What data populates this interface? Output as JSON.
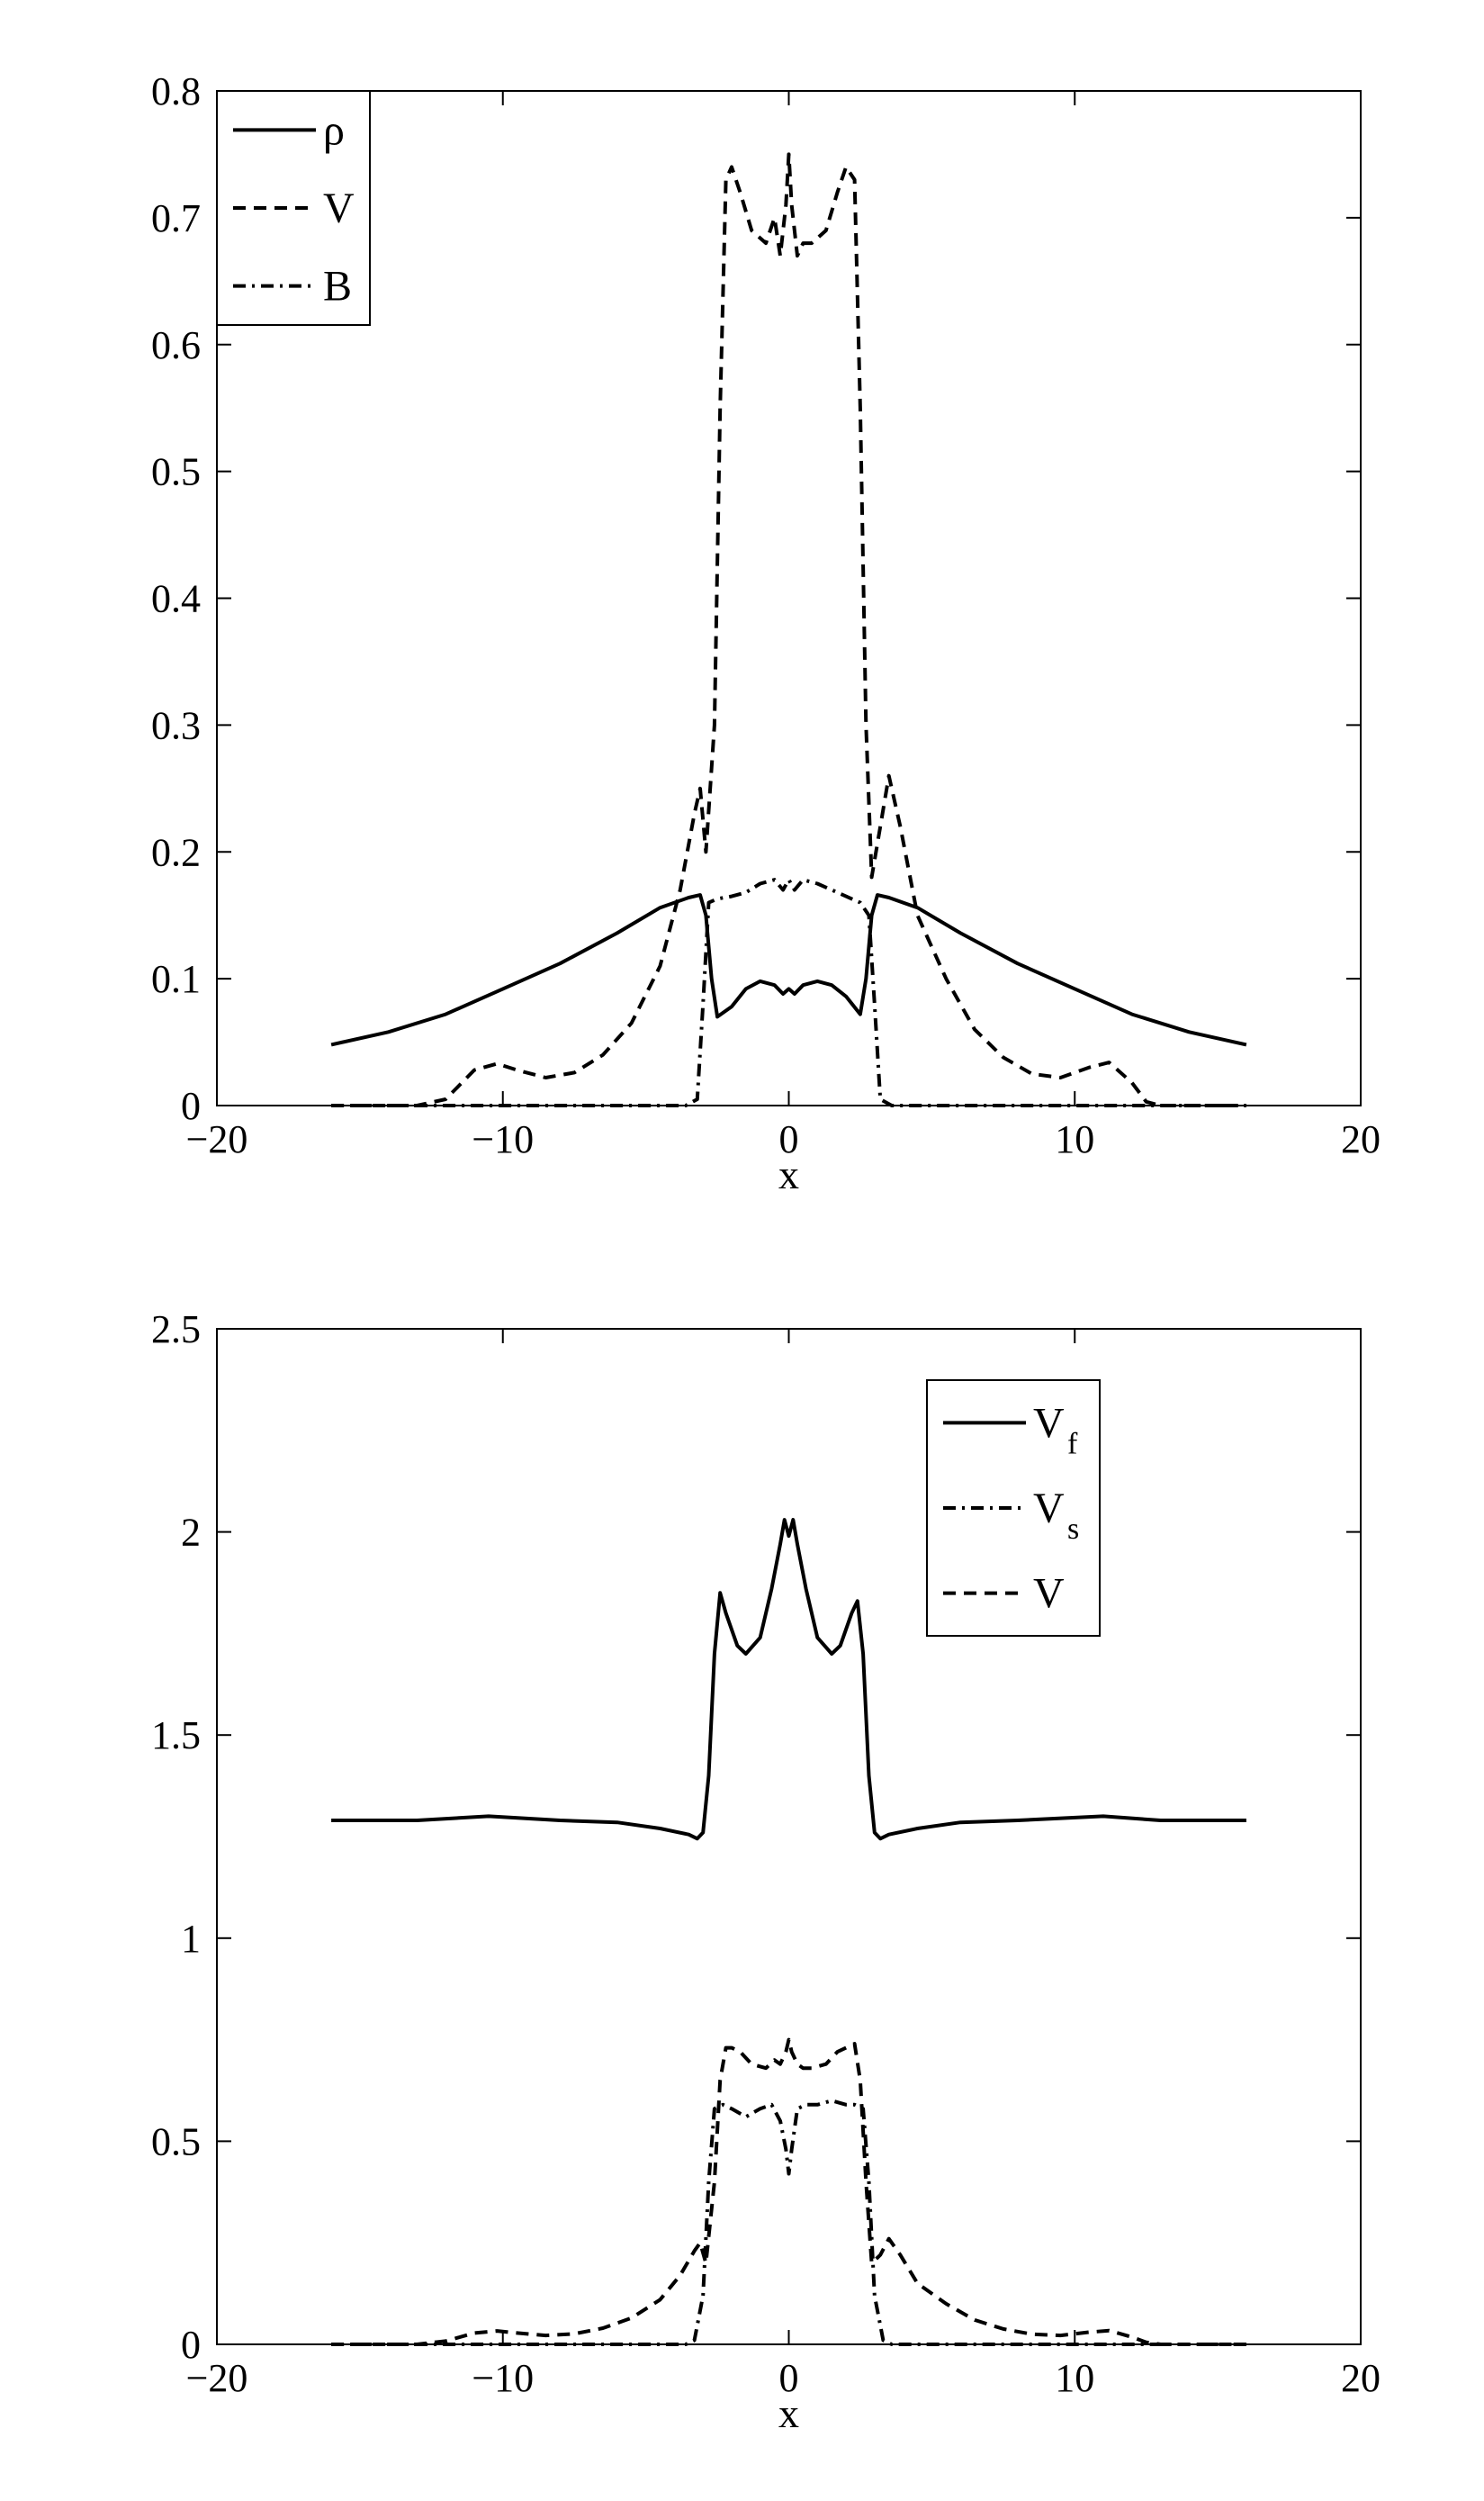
{
  "chart_data": [
    {
      "type": "line",
      "title": "",
      "xlabel": "x",
      "ylabel": "",
      "xlim": [
        -20,
        20
      ],
      "ylim": [
        0,
        0.8
      ],
      "xticks": [
        -20,
        -10,
        0,
        10,
        20
      ],
      "xtick_labels": [
        "−20",
        "−10",
        "0",
        "10",
        "20"
      ],
      "yticks": [
        0,
        0.1,
        0.2,
        0.3,
        0.4,
        0.5,
        0.6,
        0.7,
        0.8
      ],
      "ytick_labels": [
        "0",
        "0.1",
        "0.2",
        "0.3",
        "0.4",
        "0.5",
        "0.6",
        "0.7",
        "0.8"
      ],
      "grid": false,
      "legend_position": "top-left",
      "series": [
        {
          "name": "ρ",
          "style": "solid",
          "points": [
            [
              -16,
              0.048
            ],
            [
              -14,
              0.058
            ],
            [
              -12,
              0.072
            ],
            [
              -10,
              0.092
            ],
            [
              -8,
              0.112
            ],
            [
              -6,
              0.136
            ],
            [
              -4.5,
              0.156
            ],
            [
              -3.5,
              0.164
            ],
            [
              -3.1,
              0.166
            ],
            [
              -2.9,
              0.15
            ],
            [
              -2.7,
              0.1
            ],
            [
              -2.5,
              0.07
            ],
            [
              -2,
              0.078
            ],
            [
              -1.5,
              0.092
            ],
            [
              -1,
              0.098
            ],
            [
              -0.5,
              0.095
            ],
            [
              -0.2,
              0.088
            ],
            [
              0,
              0.092
            ],
            [
              0.2,
              0.088
            ],
            [
              0.5,
              0.095
            ],
            [
              1,
              0.098
            ],
            [
              1.5,
              0.095
            ],
            [
              2,
              0.086
            ],
            [
              2.5,
              0.072
            ],
            [
              2.7,
              0.1
            ],
            [
              2.9,
              0.15
            ],
            [
              3.1,
              0.166
            ],
            [
              3.5,
              0.164
            ],
            [
              4.5,
              0.156
            ],
            [
              6,
              0.136
            ],
            [
              8,
              0.112
            ],
            [
              10,
              0.092
            ],
            [
              12,
              0.072
            ],
            [
              14,
              0.058
            ],
            [
              16,
              0.048
            ]
          ]
        },
        {
          "name": "V",
          "style": "dashed",
          "points": [
            [
              -16,
              0
            ],
            [
              -13,
              0
            ],
            [
              -12,
              0.005
            ],
            [
              -11,
              0.028
            ],
            [
              -10.2,
              0.033
            ],
            [
              -9.5,
              0.028
            ],
            [
              -8.5,
              0.022
            ],
            [
              -7.5,
              0.026
            ],
            [
              -6.5,
              0.04
            ],
            [
              -5.5,
              0.065
            ],
            [
              -4.5,
              0.11
            ],
            [
              -3.8,
              0.17
            ],
            [
              -3.3,
              0.23
            ],
            [
              -3.1,
              0.25
            ],
            [
              -2.9,
              0.2
            ],
            [
              -2.6,
              0.3
            ],
            [
              -2.4,
              0.55
            ],
            [
              -2.2,
              0.73
            ],
            [
              -2,
              0.74
            ],
            [
              -1.7,
              0.72
            ],
            [
              -1.3,
              0.69
            ],
            [
              -0.8,
              0.68
            ],
            [
              -0.5,
              0.7
            ],
            [
              -0.3,
              0.67
            ],
            [
              -0.1,
              0.71
            ],
            [
              0,
              0.75
            ],
            [
              0.1,
              0.71
            ],
            [
              0.3,
              0.67
            ],
            [
              0.5,
              0.68
            ],
            [
              0.8,
              0.68
            ],
            [
              1.3,
              0.69
            ],
            [
              1.7,
              0.72
            ],
            [
              2,
              0.74
            ],
            [
              2.3,
              0.73
            ],
            [
              2.5,
              0.55
            ],
            [
              2.7,
              0.3
            ],
            [
              2.9,
              0.18
            ],
            [
              3.2,
              0.22
            ],
            [
              3.5,
              0.26
            ],
            [
              3.9,
              0.22
            ],
            [
              4.5,
              0.15
            ],
            [
              5.5,
              0.1
            ],
            [
              6.5,
              0.06
            ],
            [
              7.5,
              0.038
            ],
            [
              8.5,
              0.025
            ],
            [
              9.5,
              0.022
            ],
            [
              10.5,
              0.03
            ],
            [
              11.2,
              0.034
            ],
            [
              12,
              0.018
            ],
            [
              12.5,
              0.003
            ],
            [
              13,
              0
            ],
            [
              16,
              0
            ]
          ]
        },
        {
          "name": "B",
          "style": "dashdot",
          "points": [
            [
              -16,
              0
            ],
            [
              -3.6,
              0
            ],
            [
              -3.2,
              0.005
            ],
            [
              -3,
              0.08
            ],
            [
              -2.8,
              0.16
            ],
            [
              -2.5,
              0.163
            ],
            [
              -2,
              0.165
            ],
            [
              -1.5,
              0.168
            ],
            [
              -1,
              0.175
            ],
            [
              -0.5,
              0.178
            ],
            [
              -0.2,
              0.17
            ],
            [
              0,
              0.178
            ],
            [
              0.2,
              0.17
            ],
            [
              0.5,
              0.178
            ],
            [
              1,
              0.175
            ],
            [
              1.5,
              0.17
            ],
            [
              2,
              0.165
            ],
            [
              2.5,
              0.16
            ],
            [
              2.8,
              0.15
            ],
            [
              3,
              0.08
            ],
            [
              3.2,
              0.005
            ],
            [
              3.6,
              0
            ],
            [
              16,
              0
            ]
          ]
        }
      ]
    },
    {
      "type": "line",
      "title": "",
      "xlabel": "x",
      "ylabel": "",
      "xlim": [
        -20,
        20
      ],
      "ylim": [
        0,
        2.5
      ],
      "xticks": [
        -20,
        -10,
        0,
        10,
        20
      ],
      "xtick_labels": [
        "−20",
        "−10",
        "0",
        "10",
        "20"
      ],
      "yticks": [
        0,
        0.5,
        1,
        1.5,
        2,
        2.5
      ],
      "ytick_labels": [
        "0",
        "0.5",
        "1",
        "1.5",
        "2",
        "2.5"
      ],
      "grid": false,
      "legend_position": "top-right",
      "series": [
        {
          "name": "V",
          "subscript": "f",
          "style": "solid",
          "points": [
            [
              -16,
              1.29
            ],
            [
              -13,
              1.29
            ],
            [
              -10.5,
              1.3
            ],
            [
              -8,
              1.29
            ],
            [
              -6,
              1.285
            ],
            [
              -4.5,
              1.27
            ],
            [
              -3.5,
              1.255
            ],
            [
              -3.2,
              1.245
            ],
            [
              -3,
              1.26
            ],
            [
              -2.8,
              1.4
            ],
            [
              -2.6,
              1.7
            ],
            [
              -2.4,
              1.85
            ],
            [
              -2.2,
              1.8
            ],
            [
              -1.8,
              1.72
            ],
            [
              -1.5,
              1.7
            ],
            [
              -1,
              1.74
            ],
            [
              -0.6,
              1.86
            ],
            [
              -0.3,
              1.97
            ],
            [
              -0.15,
              2.03
            ],
            [
              0,
              1.99
            ],
            [
              0.15,
              2.03
            ],
            [
              0.3,
              1.97
            ],
            [
              0.6,
              1.86
            ],
            [
              1,
              1.74
            ],
            [
              1.5,
              1.7
            ],
            [
              1.8,
              1.72
            ],
            [
              2.2,
              1.8
            ],
            [
              2.4,
              1.83
            ],
            [
              2.6,
              1.7
            ],
            [
              2.8,
              1.4
            ],
            [
              3,
              1.26
            ],
            [
              3.2,
              1.245
            ],
            [
              3.5,
              1.255
            ],
            [
              4.5,
              1.27
            ],
            [
              6,
              1.285
            ],
            [
              8,
              1.29
            ],
            [
              11,
              1.3
            ],
            [
              13,
              1.29
            ],
            [
              16,
              1.29
            ]
          ]
        },
        {
          "name": "V",
          "subscript": "s",
          "style": "dashdot",
          "points": [
            [
              -16,
              0
            ],
            [
              -3.6,
              0
            ],
            [
              -3.3,
              0.01
            ],
            [
              -3,
              0.12
            ],
            [
              -2.8,
              0.4
            ],
            [
              -2.6,
              0.58
            ],
            [
              -2.3,
              0.59
            ],
            [
              -2,
              0.58
            ],
            [
              -1.5,
              0.56
            ],
            [
              -1,
              0.58
            ],
            [
              -0.6,
              0.59
            ],
            [
              -0.3,
              0.55
            ],
            [
              -0.1,
              0.48
            ],
            [
              0,
              0.42
            ],
            [
              0.1,
              0.48
            ],
            [
              0.3,
              0.58
            ],
            [
              0.6,
              0.59
            ],
            [
              1,
              0.59
            ],
            [
              1.5,
              0.6
            ],
            [
              2,
              0.59
            ],
            [
              2.3,
              0.59
            ],
            [
              2.6,
              0.58
            ],
            [
              2.8,
              0.4
            ],
            [
              3,
              0.12
            ],
            [
              3.3,
              0.01
            ],
            [
              3.6,
              0
            ],
            [
              16,
              0
            ]
          ]
        },
        {
          "name": "V",
          "subscript": "",
          "style": "dashed",
          "points": [
            [
              -16,
              0
            ],
            [
              -13,
              0
            ],
            [
              -12,
              0.008
            ],
            [
              -11,
              0.028
            ],
            [
              -10.2,
              0.033
            ],
            [
              -9.5,
              0.028
            ],
            [
              -8.5,
              0.022
            ],
            [
              -7.5,
              0.026
            ],
            [
              -6.5,
              0.04
            ],
            [
              -5.5,
              0.065
            ],
            [
              -4.5,
              0.11
            ],
            [
              -3.8,
              0.17
            ],
            [
              -3.3,
              0.23
            ],
            [
              -3.1,
              0.25
            ],
            [
              -2.9,
              0.2
            ],
            [
              -2.6,
              0.4
            ],
            [
              -2.4,
              0.65
            ],
            [
              -2.2,
              0.73
            ],
            [
              -2,
              0.73
            ],
            [
              -1.7,
              0.72
            ],
            [
              -1.3,
              0.69
            ],
            [
              -0.8,
              0.68
            ],
            [
              -0.5,
              0.7
            ],
            [
              -0.3,
              0.69
            ],
            [
              -0.1,
              0.72
            ],
            [
              0,
              0.75
            ],
            [
              0.1,
              0.72
            ],
            [
              0.3,
              0.69
            ],
            [
              0.5,
              0.68
            ],
            [
              0.8,
              0.68
            ],
            [
              1.3,
              0.69
            ],
            [
              1.7,
              0.72
            ],
            [
              2,
              0.73
            ],
            [
              2.3,
              0.74
            ],
            [
              2.5,
              0.65
            ],
            [
              2.7,
              0.4
            ],
            [
              2.9,
              0.2
            ],
            [
              3.2,
              0.22
            ],
            [
              3.5,
              0.26
            ],
            [
              3.9,
              0.22
            ],
            [
              4.5,
              0.15
            ],
            [
              5.5,
              0.1
            ],
            [
              6.5,
              0.06
            ],
            [
              7.5,
              0.038
            ],
            [
              8.5,
              0.025
            ],
            [
              9.5,
              0.022
            ],
            [
              10.5,
              0.03
            ],
            [
              11.2,
              0.034
            ],
            [
              12,
              0.018
            ],
            [
              12.5,
              0.005
            ],
            [
              13,
              0
            ],
            [
              16,
              0
            ]
          ]
        }
      ]
    }
  ]
}
